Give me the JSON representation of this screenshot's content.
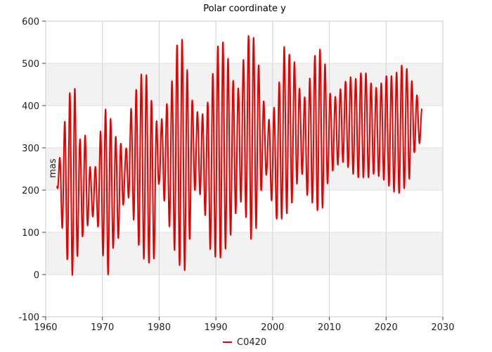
{
  "chart_data": {
    "type": "line",
    "title": "Polar coordinate y",
    "xlabel": "",
    "ylabel": "mas",
    "xlim": [
      1960,
      2030
    ],
    "ylim": [
      -100,
      600
    ],
    "xticks": [
      "1960",
      "1970",
      "1980",
      "1990",
      "2000",
      "2010",
      "2020",
      "2030"
    ],
    "yticks": [
      "-100",
      "0",
      "100",
      "200",
      "300",
      "400",
      "500",
      "600"
    ],
    "grid": true,
    "banded_background": true,
    "legend_position": "bottom-center",
    "series": [
      {
        "name": "C0420",
        "color": "#e60000",
        "oscillation_period_years": 0.9,
        "x": [
          1962,
          1963,
          1964,
          1965,
          1966,
          1967,
          1968,
          1969,
          1970,
          1971,
          1972,
          1973,
          1974,
          1975,
          1976,
          1977,
          1978,
          1979,
          1980,
          1981,
          1982,
          1983,
          1984,
          1985,
          1986,
          1987,
          1988,
          1989,
          1990,
          1991,
          1992,
          1993,
          1994,
          1995,
          1996,
          1997,
          1998,
          1999,
          2000,
          2001,
          2002,
          2003,
          2004,
          2005,
          2006,
          2007,
          2008,
          2009,
          2010,
          2011,
          2012,
          2013,
          2014,
          2015,
          2016,
          2017,
          2018,
          2019,
          2020,
          2021,
          2022,
          2023,
          2024,
          2025,
          2026.3
        ],
        "upper": [
          230,
          330,
          420,
          460,
          320,
          330,
          240,
          260,
          380,
          400,
          330,
          320,
          280,
          390,
          440,
          480,
          470,
          380,
          350,
          390,
          430,
          540,
          560,
          480,
          400,
          380,
          380,
          430,
          530,
          560,
          520,
          460,
          440,
          520,
          580,
          550,
          450,
          360,
          380,
          440,
          540,
          520,
          500,
          420,
          420,
          500,
          540,
          520,
          430,
          420,
          440,
          460,
          470,
          460,
          490,
          460,
          440,
          450,
          470,
          470,
          480,
          500,
          480,
          440,
          395
        ],
        "lower": [
          210,
          100,
          20,
          -10,
          80,
          100,
          140,
          130,
          50,
          0,
          70,
          90,
          200,
          170,
          90,
          40,
          30,
          20,
          220,
          170,
          100,
          40,
          10,
          10,
          200,
          200,
          150,
          60,
          40,
          40,
          70,
          110,
          180,
          160,
          80,
          100,
          200,
          240,
          160,
          120,
          140,
          150,
          200,
          250,
          190,
          170,
          150,
          160,
          240,
          250,
          270,
          260,
          240,
          230,
          230,
          230,
          240,
          230,
          220,
          200,
          190,
          200,
          220,
          290,
          320
        ]
      }
    ]
  }
}
